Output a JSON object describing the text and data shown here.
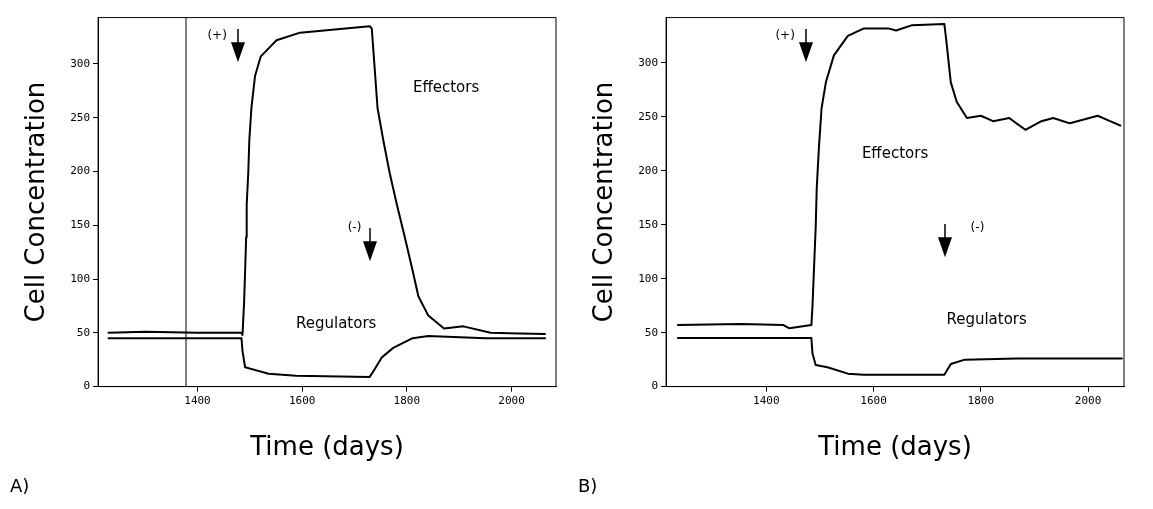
{
  "chart_data": [
    {
      "type": "line",
      "xlabel": "Time (days)",
      "ylabel": "Cell Concentration",
      "xlim": [
        1210,
        2085
      ],
      "xticks": [
        1400,
        1600,
        1800,
        2000
      ],
      "ylim": [
        0,
        343
      ],
      "yticks": [
        0,
        50,
        100,
        150,
        200,
        250,
        300
      ],
      "grid": false,
      "legend": false,
      "marker": "none",
      "line_style": "solid",
      "series": [
        {
          "name": "Effectors",
          "color": "#000000",
          "x": [
            1230,
            1300,
            1400,
            1484,
            1486,
            1489,
            1491,
            1493,
            1494,
            1497,
            1499,
            1503,
            1510,
            1521,
            1551,
            1596,
            1662,
            1729,
            1733,
            1744,
            1755,
            1767,
            1781,
            1796,
            1811,
            1822,
            1841,
            1871,
            1908,
            1960,
            2064
          ],
          "values": [
            50,
            51,
            50,
            50,
            48,
            78,
            108,
            139,
            169,
            199,
            229,
            259,
            289,
            307,
            322,
            329,
            332,
            335,
            333,
            259,
            229,
            199,
            169,
            139,
            108,
            84,
            66,
            54,
            56,
            50,
            49
          ]
        },
        {
          "name": "Regulators",
          "color": "#000000",
          "x": [
            1230,
            1300,
            1400,
            1484,
            1486,
            1491,
            1536,
            1588,
            1729,
            1737,
            1752,
            1774,
            1811,
            1841,
            1950,
            2064
          ],
          "values": [
            45,
            45,
            45,
            45,
            33,
            18,
            12,
            10,
            9,
            15,
            27,
            36,
            45,
            47,
            45,
            45
          ]
        }
      ],
      "ref_lines": [
        {
          "axis": "x",
          "value": 1378,
          "color": "#000000"
        }
      ],
      "annotations": [
        "(+)",
        "(-)",
        "A)"
      ]
    },
    {
      "type": "line",
      "xlabel": "Time (days)",
      "ylabel": "Cell Concentration",
      "xlim": [
        1213,
        2067
      ],
      "xticks": [
        1400,
        1600,
        1800,
        2000
      ],
      "ylim": [
        0,
        342
      ],
      "yticks": [
        0,
        50,
        100,
        150,
        200,
        250,
        300
      ],
      "grid": false,
      "legend": false,
      "marker": "none",
      "line_style": "solid",
      "series": [
        {
          "name": "Effectors",
          "color": "#000000",
          "x": [
            1235,
            1350,
            1432,
            1443,
            1484,
            1486,
            1489,
            1492,
            1494,
            1498,
            1503,
            1511,
            1526,
            1552,
            1582,
            1627,
            1642,
            1672,
            1732,
            1736,
            1744,
            1755,
            1774,
            1800,
            1823,
            1853,
            1883,
            1913,
            1935,
            1966,
            2018,
            2041,
            2060
          ],
          "values": [
            57,
            58,
            57,
            54,
            57,
            74,
            111,
            147,
            184,
            221,
            258,
            282,
            307,
            325,
            332,
            332,
            330,
            335,
            336,
            319,
            282,
            264,
            249,
            251,
            246,
            249,
            238,
            246,
            249,
            244,
            251,
            246,
            242
          ]
        },
        {
          "name": "Regulators",
          "color": "#000000",
          "x": [
            1235,
            1350,
            1484,
            1486,
            1492,
            1514,
            1552,
            1582,
            1732,
            1744,
            1770,
            1868,
            2063
          ],
          "values": [
            45,
            45,
            45,
            31,
            20,
            18,
            12,
            11,
            11,
            21,
            25,
            26,
            26
          ]
        }
      ],
      "annotations": [
        "(+)",
        "(-)",
        "B)"
      ]
    }
  ]
}
